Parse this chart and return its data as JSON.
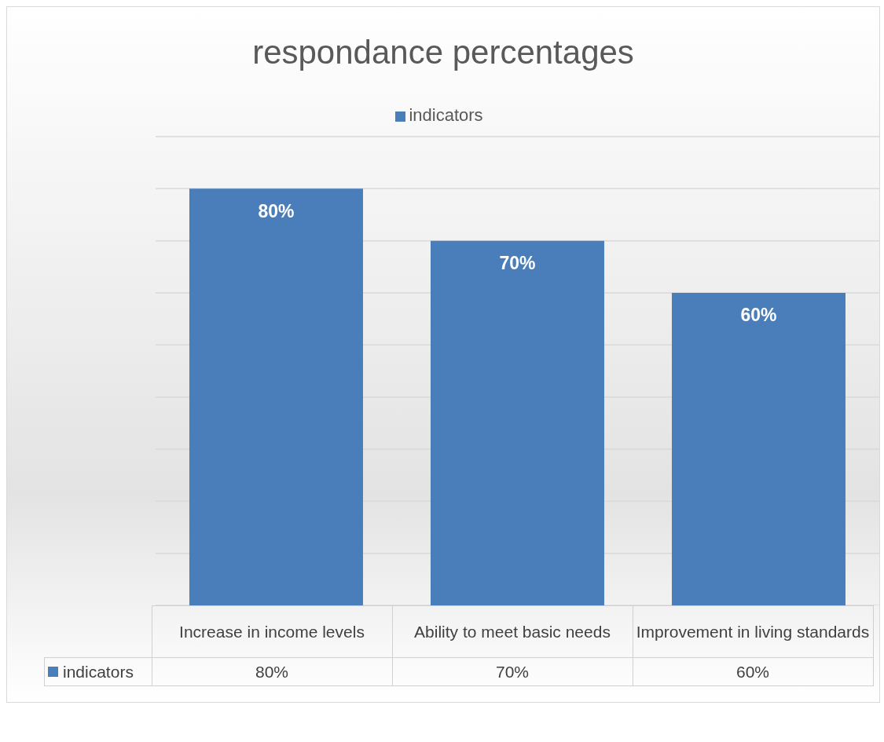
{
  "chart_data": {
    "type": "bar",
    "title": "respondance percentages",
    "categories": [
      "Increase in income levels",
      "Ability to meet basic needs",
      "Improvement in living standards"
    ],
    "series": [
      {
        "name": "indicators",
        "color": "#4a7ebb",
        "values": [
          80,
          70,
          60
        ],
        "value_labels": [
          "80%",
          "70%",
          "60%"
        ]
      }
    ],
    "ylim": [
      0,
      90
    ],
    "yticks": [
      {
        "value": 0,
        "label": null
      },
      {
        "value": 10,
        "label": null
      },
      {
        "value": 20,
        "label": null
      },
      {
        "value": 30,
        "label": null
      },
      {
        "value": 40,
        "label": null
      },
      {
        "value": 50,
        "label": null
      },
      {
        "value": 60,
        "label": null
      },
      {
        "value": 70,
        "label": null
      },
      {
        "value": 80,
        "label": null
      },
      {
        "value": 90,
        "label": null
      }
    ],
    "grid": "y",
    "legend": "top",
    "tick_labels": "x"
  }
}
